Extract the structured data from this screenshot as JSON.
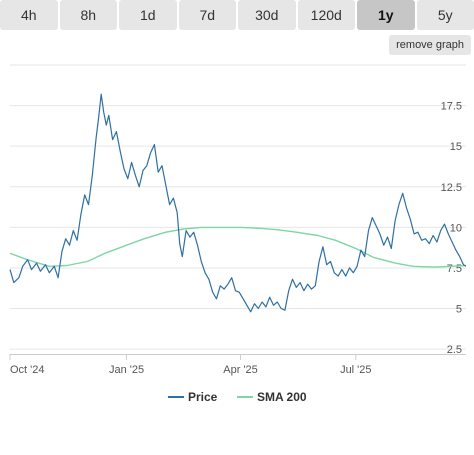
{
  "tabs": [
    {
      "label": "4h",
      "active": false
    },
    {
      "label": "8h",
      "active": false
    },
    {
      "label": "1d",
      "active": false
    },
    {
      "label": "7d",
      "active": false
    },
    {
      "label": "30d",
      "active": false
    },
    {
      "label": "120d",
      "active": false
    },
    {
      "label": "1y",
      "active": true
    },
    {
      "label": "5y",
      "active": false
    }
  ],
  "remove_graph_label": "remove graph",
  "colors": {
    "price": "#2f6fa3",
    "sma": "#7ed6a4",
    "grid": "#e6e6e6",
    "axis": "#cccccc"
  },
  "chart_data": {
    "type": "line",
    "x_ticks": [
      "Oct '24",
      "Jan '25",
      "Apr '25",
      "Jul '25"
    ],
    "x_tick_positions": [
      "2024-10-01",
      "2025-01-01",
      "2025-04-01",
      "2025-07-01"
    ],
    "xlim": [
      "2024-10-01",
      "2025-09-26"
    ],
    "y_ticks": [
      2.5,
      5,
      7.5,
      10,
      12.5,
      15,
      17.5
    ],
    "ylim": [
      2.2,
      20.0
    ],
    "y_axis_side": "right",
    "grid": true,
    "legend": "bottom-center",
    "series": [
      {
        "name": "Price",
        "color": "#2f6fa3",
        "points": [
          [
            "2024-10-01",
            7.4
          ],
          [
            "2024-10-04",
            6.6
          ],
          [
            "2024-10-08",
            6.9
          ],
          [
            "2024-10-11",
            7.6
          ],
          [
            "2024-10-15",
            8.0
          ],
          [
            "2024-10-18",
            7.4
          ],
          [
            "2024-10-22",
            7.8
          ],
          [
            "2024-10-25",
            7.3
          ],
          [
            "2024-10-29",
            7.7
          ],
          [
            "2024-11-01",
            7.2
          ],
          [
            "2024-11-05",
            7.6
          ],
          [
            "2024-11-08",
            6.9
          ],
          [
            "2024-11-11",
            8.5
          ],
          [
            "2024-11-14",
            9.3
          ],
          [
            "2024-11-17",
            8.9
          ],
          [
            "2024-11-20",
            9.8
          ],
          [
            "2024-11-23",
            9.2
          ],
          [
            "2024-11-26",
            10.8
          ],
          [
            "2024-11-29",
            12.0
          ],
          [
            "2024-12-02",
            11.4
          ],
          [
            "2024-12-05",
            13.2
          ],
          [
            "2024-12-08",
            15.5
          ],
          [
            "2024-12-10",
            16.8
          ],
          [
            "2024-12-12",
            18.2
          ],
          [
            "2024-12-14",
            17.1
          ],
          [
            "2024-12-16",
            16.3
          ],
          [
            "2024-12-18",
            16.9
          ],
          [
            "2024-12-21",
            15.4
          ],
          [
            "2024-12-24",
            15.9
          ],
          [
            "2024-12-27",
            14.7
          ],
          [
            "2024-12-30",
            13.6
          ],
          [
            "2025-01-02",
            13.0
          ],
          [
            "2025-01-05",
            14.0
          ],
          [
            "2025-01-08",
            13.2
          ],
          [
            "2025-01-11",
            12.5
          ],
          [
            "2025-01-14",
            13.5
          ],
          [
            "2025-01-17",
            13.8
          ],
          [
            "2025-01-20",
            14.6
          ],
          [
            "2025-01-23",
            15.1
          ],
          [
            "2025-01-26",
            13.4
          ],
          [
            "2025-01-29",
            13.8
          ],
          [
            "2025-02-01",
            12.6
          ],
          [
            "2025-02-04",
            11.4
          ],
          [
            "2025-02-07",
            11.8
          ],
          [
            "2025-02-10",
            10.9
          ],
          [
            "2025-02-12",
            9.0
          ],
          [
            "2025-02-14",
            8.2
          ],
          [
            "2025-02-17",
            9.8
          ],
          [
            "2025-02-20",
            9.4
          ],
          [
            "2025-02-23",
            9.7
          ],
          [
            "2025-02-26",
            8.9
          ],
          [
            "2025-03-01",
            7.9
          ],
          [
            "2025-03-04",
            7.2
          ],
          [
            "2025-03-07",
            6.8
          ],
          [
            "2025-03-10",
            6.0
          ],
          [
            "2025-03-13",
            5.6
          ],
          [
            "2025-03-16",
            6.4
          ],
          [
            "2025-03-19",
            6.2
          ],
          [
            "2025-03-22",
            6.5
          ],
          [
            "2025-03-25",
            6.9
          ],
          [
            "2025-03-28",
            6.1
          ],
          [
            "2025-03-31",
            6.0
          ],
          [
            "2025-04-03",
            5.6
          ],
          [
            "2025-04-06",
            5.2
          ],
          [
            "2025-04-09",
            4.8
          ],
          [
            "2025-04-12",
            5.3
          ],
          [
            "2025-04-15",
            5.0
          ],
          [
            "2025-04-18",
            5.4
          ],
          [
            "2025-04-21",
            5.1
          ],
          [
            "2025-04-24",
            5.7
          ],
          [
            "2025-04-27",
            5.2
          ],
          [
            "2025-04-30",
            5.4
          ],
          [
            "2025-05-03",
            5.0
          ],
          [
            "2025-05-06",
            4.9
          ],
          [
            "2025-05-09",
            6.1
          ],
          [
            "2025-05-12",
            6.8
          ],
          [
            "2025-05-15",
            6.3
          ],
          [
            "2025-05-18",
            6.6
          ],
          [
            "2025-05-21",
            6.1
          ],
          [
            "2025-05-24",
            6.5
          ],
          [
            "2025-05-27",
            6.2
          ],
          [
            "2025-05-30",
            6.4
          ],
          [
            "2025-06-02",
            7.9
          ],
          [
            "2025-06-05",
            8.8
          ],
          [
            "2025-06-08",
            7.7
          ],
          [
            "2025-06-11",
            7.9
          ],
          [
            "2025-06-14",
            7.2
          ],
          [
            "2025-06-17",
            7.0
          ],
          [
            "2025-06-20",
            7.4
          ],
          [
            "2025-06-23",
            7.0
          ],
          [
            "2025-06-26",
            7.5
          ],
          [
            "2025-06-29",
            7.2
          ],
          [
            "2025-07-02",
            7.6
          ],
          [
            "2025-07-05",
            8.6
          ],
          [
            "2025-07-08",
            8.2
          ],
          [
            "2025-07-11",
            9.8
          ],
          [
            "2025-07-14",
            10.6
          ],
          [
            "2025-07-17",
            10.1
          ],
          [
            "2025-07-20",
            9.6
          ],
          [
            "2025-07-23",
            8.9
          ],
          [
            "2025-07-26",
            9.4
          ],
          [
            "2025-07-29",
            8.7
          ],
          [
            "2025-08-01",
            10.4
          ],
          [
            "2025-08-04",
            11.4
          ],
          [
            "2025-08-07",
            12.1
          ],
          [
            "2025-08-10",
            11.2
          ],
          [
            "2025-08-13",
            10.5
          ],
          [
            "2025-08-16",
            9.6
          ],
          [
            "2025-08-19",
            9.7
          ],
          [
            "2025-08-22",
            9.2
          ],
          [
            "2025-08-25",
            9.3
          ],
          [
            "2025-08-28",
            9.0
          ],
          [
            "2025-08-31",
            9.5
          ],
          [
            "2025-09-03",
            9.1
          ],
          [
            "2025-09-06",
            9.8
          ],
          [
            "2025-09-09",
            10.2
          ],
          [
            "2025-09-12",
            9.6
          ],
          [
            "2025-09-15",
            9.1
          ],
          [
            "2025-09-18",
            8.6
          ],
          [
            "2025-09-21",
            8.2
          ],
          [
            "2025-09-24",
            7.7
          ],
          [
            "2025-09-26",
            7.6
          ]
        ]
      },
      {
        "name": "SMA 200",
        "color": "#7ed6a4",
        "points": [
          [
            "2024-10-01",
            8.4
          ],
          [
            "2024-10-15",
            8.0
          ],
          [
            "2024-11-01",
            7.6
          ],
          [
            "2024-11-15",
            7.65
          ],
          [
            "2024-12-01",
            7.9
          ],
          [
            "2024-12-15",
            8.4
          ],
          [
            "2025-01-01",
            8.9
          ],
          [
            "2025-01-15",
            9.3
          ],
          [
            "2025-02-01",
            9.7
          ],
          [
            "2025-02-15",
            9.9
          ],
          [
            "2025-03-01",
            10.0
          ],
          [
            "2025-03-15",
            10.0
          ],
          [
            "2025-04-01",
            10.0
          ],
          [
            "2025-04-15",
            9.95
          ],
          [
            "2025-05-01",
            9.85
          ],
          [
            "2025-05-15",
            9.7
          ],
          [
            "2025-06-01",
            9.5
          ],
          [
            "2025-06-15",
            9.2
          ],
          [
            "2025-07-01",
            8.7
          ],
          [
            "2025-07-15",
            8.15
          ],
          [
            "2025-08-01",
            7.8
          ],
          [
            "2025-08-15",
            7.6
          ],
          [
            "2025-09-01",
            7.55
          ],
          [
            "2025-09-15",
            7.6
          ],
          [
            "2025-09-26",
            7.65
          ]
        ]
      }
    ]
  }
}
